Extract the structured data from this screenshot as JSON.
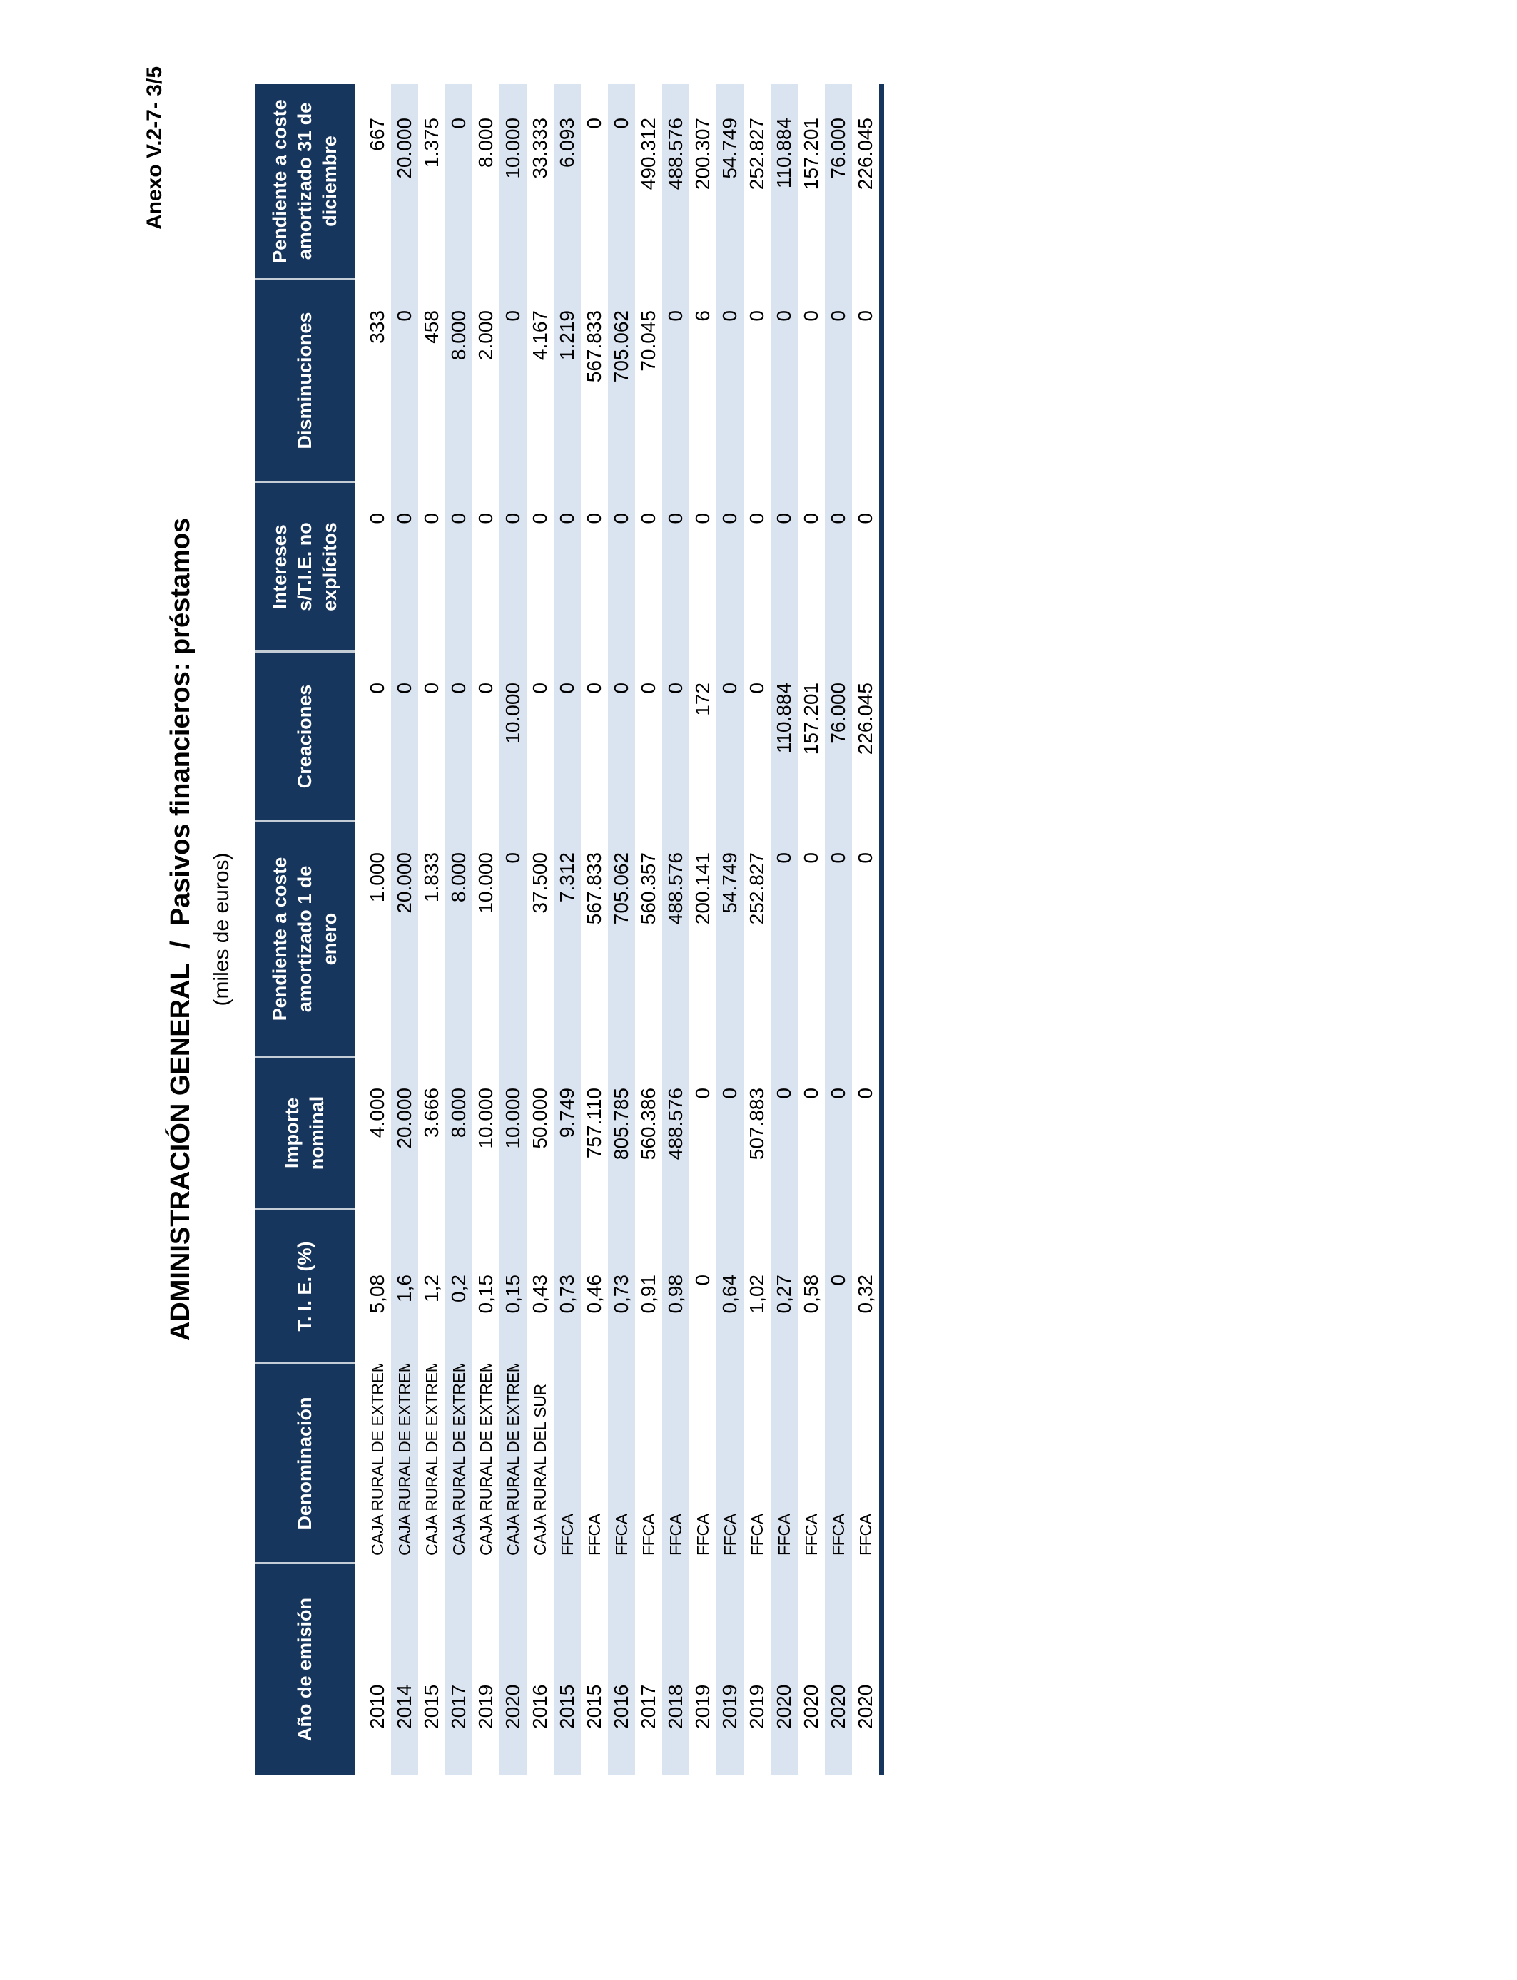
{
  "page": {
    "annex_label": "Anexo V.2-7- 3/5",
    "title": "ADMINISTRACIÓN GENERAL  /  Pasivos financieros: préstamos",
    "subtitle": "(miles de euros)"
  },
  "colors": {
    "header_navy": "#17365D",
    "row_stripe_blue": "#DAE3F0",
    "text": "#000000",
    "header_text": "#FFFFFF"
  },
  "table": {
    "columns": [
      {
        "key": "anio",
        "label": "Año de emisión"
      },
      {
        "key": "denominacion",
        "label": "Denominación"
      },
      {
        "key": "tie",
        "label": "T. I. E. (%)"
      },
      {
        "key": "importe",
        "label": "Importe nominal"
      },
      {
        "key": "pendiente_enero",
        "label": "Pendiente a coste\namortizado 1 de\nenero"
      },
      {
        "key": "creaciones",
        "label": "Creaciones"
      },
      {
        "key": "intereses",
        "label": "Intereses\ns/T.I.E. no\nexplícitos"
      },
      {
        "key": "disminuciones",
        "label": "Disminuciones"
      },
      {
        "key": "pendiente_diciembre",
        "label": "Pendiente a coste\namortizado 31 de\ndiciembre"
      }
    ],
    "rows": [
      [
        "2010",
        "CAJA RURAL DE EXTREMADURA",
        "5,08",
        "4.000",
        "1.000",
        "0",
        "0",
        "333",
        "667"
      ],
      [
        "2014",
        "CAJA RURAL DE EXTREMADURA",
        "1,6",
        "20.000",
        "20.000",
        "0",
        "0",
        "0",
        "20.000"
      ],
      [
        "2015",
        "CAJA RURAL DE EXTREMADURA",
        "1,2",
        "3.666",
        "1.833",
        "0",
        "0",
        "458",
        "1.375"
      ],
      [
        "2017",
        "CAJA RURAL DE EXTREMADURA",
        "0,2",
        "8.000",
        "8.000",
        "0",
        "0",
        "8.000",
        "0"
      ],
      [
        "2019",
        "CAJA RURAL DE EXTREMADURA",
        "0,15",
        "10.000",
        "10.000",
        "0",
        "0",
        "2.000",
        "8.000"
      ],
      [
        "2020",
        "CAJA RURAL DE EXTREMADURA",
        "0,15",
        "10.000",
        "0",
        "10.000",
        "0",
        "0",
        "10.000"
      ],
      [
        "2016",
        "CAJA RURAL DEL SUR",
        "0,43",
        "50.000",
        "37.500",
        "0",
        "0",
        "4.167",
        "33.333"
      ],
      [
        "2015",
        "FFCA",
        "0,73",
        "9.749",
        "7.312",
        "0",
        "0",
        "1.219",
        "6.093"
      ],
      [
        "2015",
        "FFCA",
        "0,46",
        "757.110",
        "567.833",
        "0",
        "0",
        "567.833",
        "0"
      ],
      [
        "2016",
        "FFCA",
        "0,73",
        "805.785",
        "705.062",
        "0",
        "0",
        "705.062",
        "0"
      ],
      [
        "2017",
        "FFCA",
        "0,91",
        "560.386",
        "560.357",
        "0",
        "0",
        "70.045",
        "490.312"
      ],
      [
        "2018",
        "FFCA",
        "0,98",
        "488.576",
        "488.576",
        "0",
        "0",
        "0",
        "488.576"
      ],
      [
        "2019",
        "FFCA",
        "0",
        "0",
        "200.141",
        "172",
        "0",
        "6",
        "200.307"
      ],
      [
        "2019",
        "FFCA",
        "0,64",
        "0",
        "54.749",
        "0",
        "0",
        "0",
        "54.749"
      ],
      [
        "2019",
        "FFCA",
        "1,02",
        "507.883",
        "252.827",
        "0",
        "0",
        "0",
        "252.827"
      ],
      [
        "2020",
        "FFCA",
        "0,27",
        "0",
        "0",
        "110.884",
        "0",
        "0",
        "110.884"
      ],
      [
        "2020",
        "FFCA",
        "0,58",
        "0",
        "0",
        "157.201",
        "0",
        "0",
        "157.201"
      ],
      [
        "2020",
        "FFCA",
        "0",
        "0",
        "0",
        "76.000",
        "0",
        "0",
        "76.000"
      ],
      [
        "2020",
        "FFCA",
        "0,32",
        "0",
        "0",
        "226.045",
        "0",
        "0",
        "226.045"
      ]
    ]
  }
}
